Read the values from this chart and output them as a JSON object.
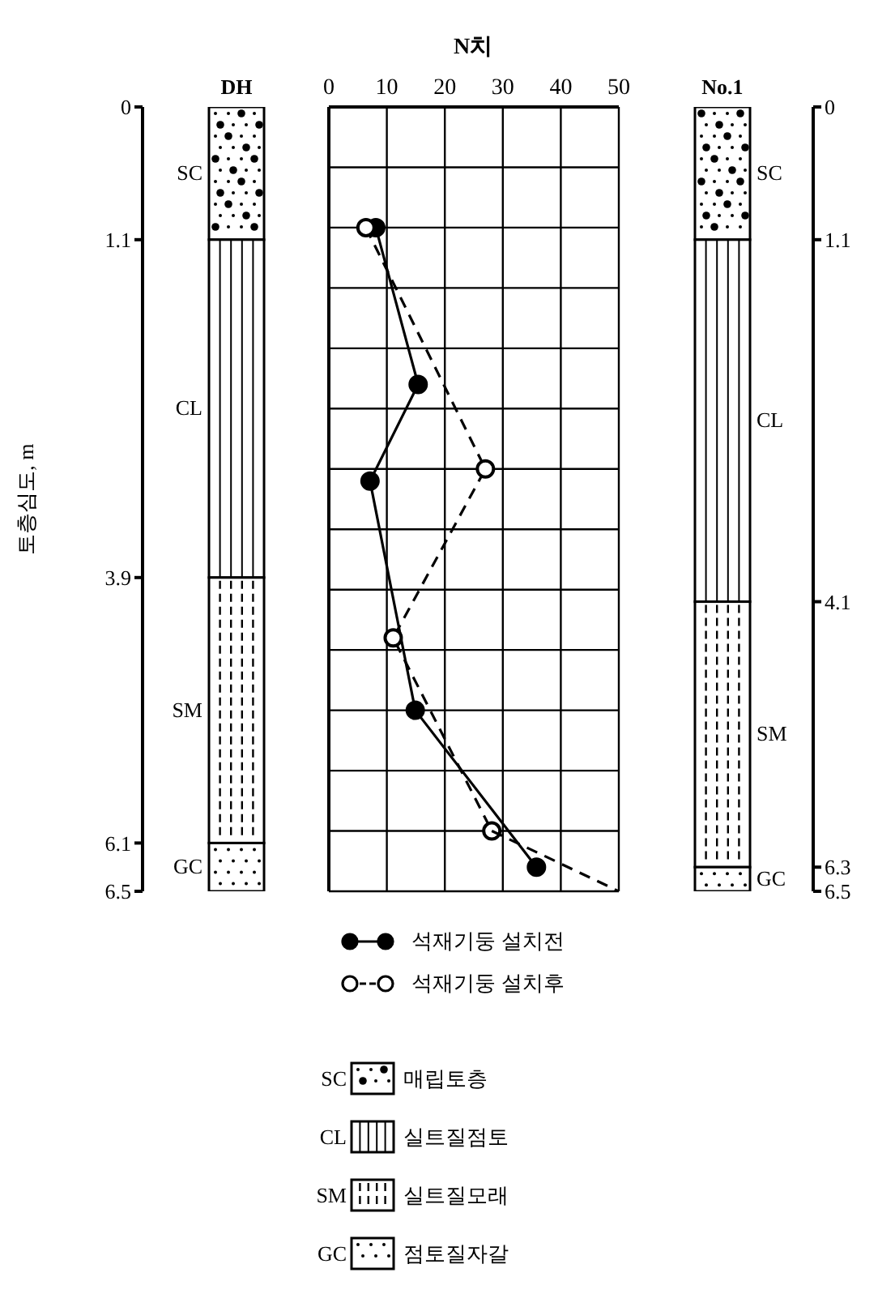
{
  "chart_data": [
    {
      "type": "bar",
      "stacked": true,
      "ylabel": "토층심도, m",
      "categories": [
        "DH"
      ],
      "ylim": [
        6.5,
        0
      ],
      "yticks": [
        0,
        1.1,
        3.9,
        6.1,
        6.5
      ],
      "legend": "bottom",
      "annotations": [
        "매립토층",
        "실트질점토",
        "실트질모래",
        "점토질자갈"
      ],
      "series": [
        {
          "name": "SC",
          "color": "#ffffff",
          "values": [
            1.1
          ]
        },
        {
          "name": "CL",
          "color": "#ffffff",
          "values": [
            2.8
          ]
        },
        {
          "name": "SM",
          "color": "#ffffff",
          "values": [
            2.2
          ]
        },
        {
          "name": "GC",
          "color": "#ffffff",
          "values": [
            0.4
          ]
        }
      ]
    },
    {
      "type": "scatter",
      "xlabel": "N치",
      "xlim": [
        0,
        50
      ],
      "xticks": [
        0,
        10,
        20,
        30,
        40,
        50
      ],
      "ylim": [
        6.5,
        0
      ],
      "yticks": [
        0,
        {
          "value": 0.5,
          "label": null
        },
        {
          "value": 1,
          "label": null
        },
        {
          "value": 1.5,
          "label": null
        },
        {
          "value": 2,
          "label": null
        },
        {
          "value": 2.5,
          "label": null
        },
        {
          "value": 3,
          "label": null
        },
        {
          "value": 3.5,
          "label": null
        },
        {
          "value": 4,
          "label": null
        },
        {
          "value": 4.5,
          "label": null
        },
        {
          "value": 5,
          "label": null
        },
        {
          "value": 5.5,
          "label": null
        },
        {
          "value": 6,
          "label": null
        },
        6.5
      ],
      "tick_labels": "x",
      "grid": true,
      "legend": "bottom",
      "series": [
        {
          "name": "석재기둥 설치전",
          "type": "line",
          "color": "#000000",
          "marker": "circle",
          "line_style": "solid",
          "x": [
            8.1,
            15.4,
            7.1,
            14.9,
            35.8
          ],
          "values": [
            1.0,
            2.3,
            3.1,
            5.0,
            6.3
          ]
        },
        {
          "name": "석재기둥 설치후",
          "type": "line",
          "color": "#000000",
          "marker": "circle",
          "line_style": "dashed",
          "x": [
            6.4,
            27,
            11.1,
            28.1
          ],
          "values": [
            1.0,
            3.0,
            4.4,
            6.0
          ]
        },
        {
          "type": "line",
          "color": "#000000",
          "marker": "none",
          "line_style": "dashed",
          "x": [
            28.1,
            50
          ],
          "values": [
            6.0,
            6.5
          ]
        }
      ]
    },
    {
      "type": "bar",
      "stacked": true,
      "categories": [
        "No.1"
      ],
      "ylim": [
        6.5,
        0
      ],
      "yticks": [
        0,
        1.1,
        4.1,
        6.3,
        6.5
      ],
      "series": [
        {
          "name": "SC",
          "color": "#ffffff",
          "values": [
            1.1
          ]
        },
        {
          "name": "CL",
          "color": "#ffffff",
          "values": [
            3.0
          ]
        },
        {
          "name": "SM",
          "color": "#ffffff",
          "values": [
            2.2
          ]
        },
        {
          "name": "GC",
          "color": "#ffffff",
          "values": [
            0.2
          ]
        }
      ]
    }
  ]
}
